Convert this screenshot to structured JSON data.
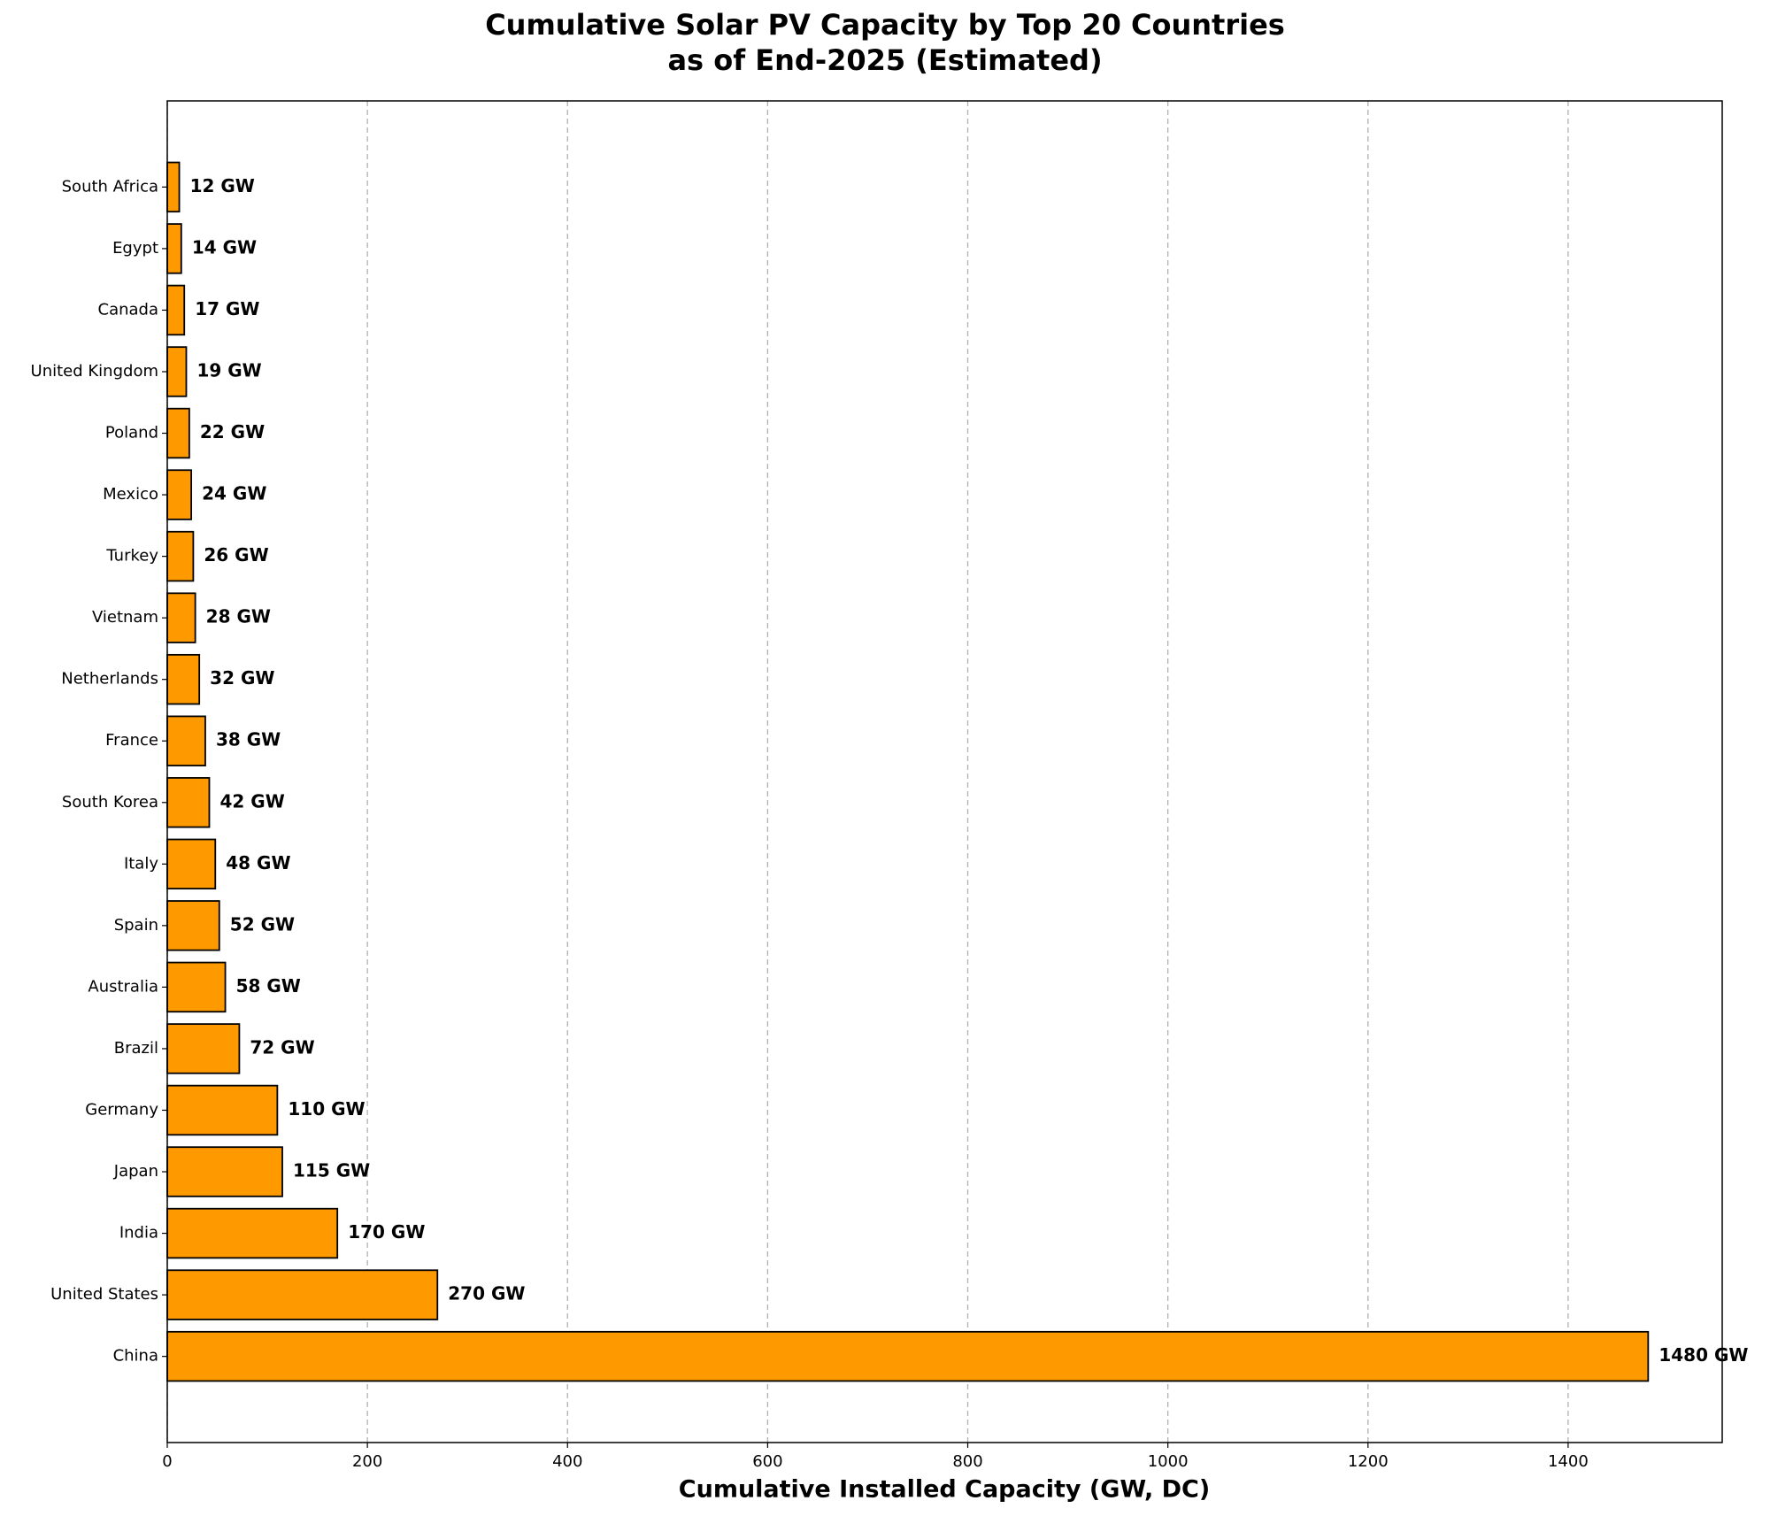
{
  "chart_data": {
    "type": "barh",
    "title": "Cumulative Solar PV Capacity by Top 20 Countries\nas of End-2025 (Estimated)",
    "x_label": "Cumulative Installed Capacity (GW, DC)",
    "categories": [
      "China",
      "United States",
      "India",
      "Japan",
      "Germany",
      "Brazil",
      "Australia",
      "Spain",
      "Italy",
      "South Korea",
      "France",
      "Netherlands",
      "Vietnam",
      "Turkey",
      "Mexico",
      "Poland",
      "United Kingdom",
      "Canada",
      "Egypt",
      "South Africa"
    ],
    "values": [
      1480,
      270,
      170,
      115,
      110,
      72,
      58,
      52,
      48,
      42,
      38,
      32,
      28,
      26,
      24,
      22,
      19,
      17,
      14,
      12
    ],
    "value_labels": [
      "1480 GW",
      "270 GW",
      "170 GW",
      "115 GW",
      "110 GW",
      "72 GW",
      "58 GW",
      "52 GW",
      "48 GW",
      "42 GW",
      "38 GW",
      "32 GW",
      "28 GW",
      "26 GW",
      "24 GW",
      "22 GW",
      "19 GW",
      "17 GW",
      "14 GW",
      "12 GW"
    ],
    "color": "#ff9900",
    "edge_color": "#000000",
    "xlim": [
      0,
      1554
    ],
    "xticks": [
      0,
      200,
      400,
      600,
      800,
      1000,
      1200,
      1400
    ],
    "grid": true
  }
}
